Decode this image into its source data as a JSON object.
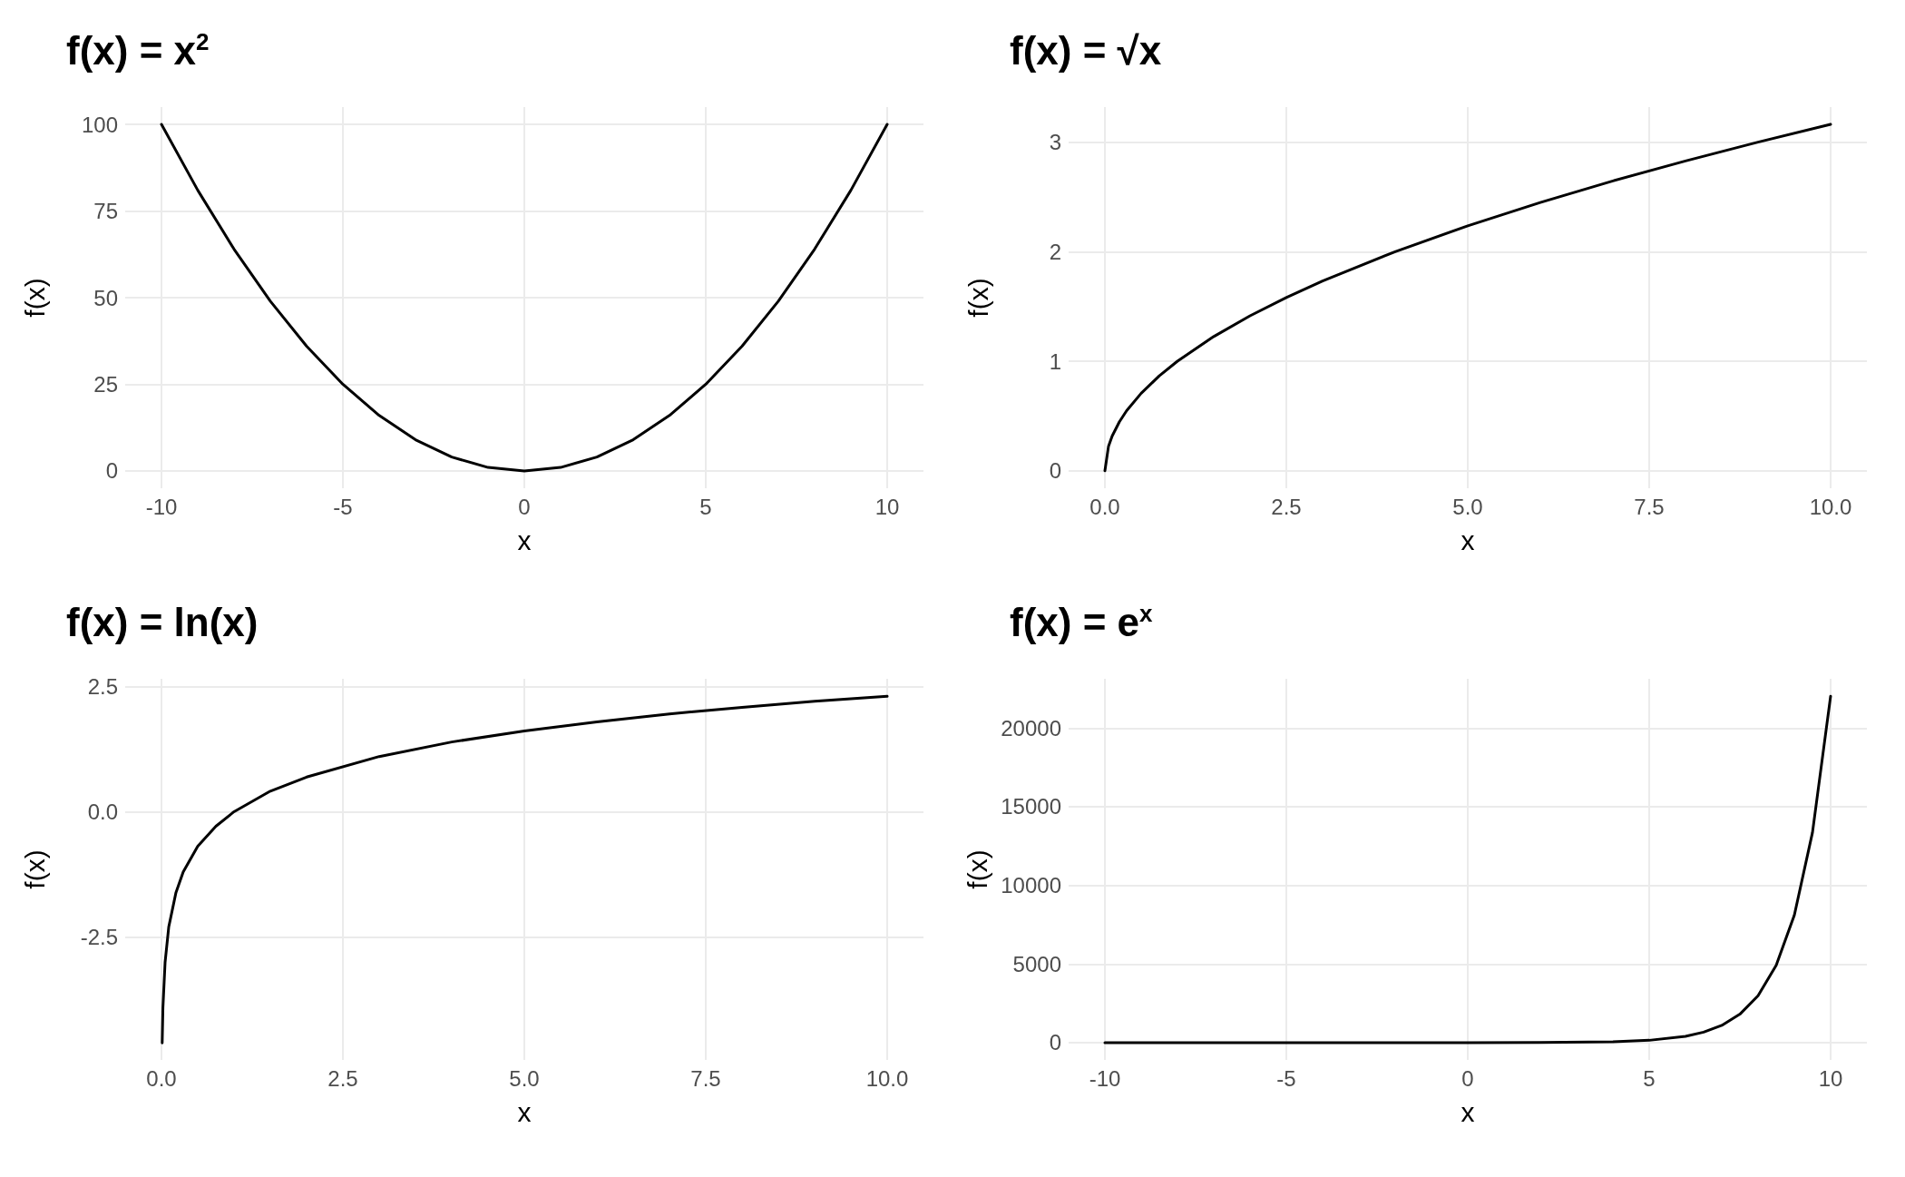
{
  "chart_data": [
    {
      "type": "line",
      "title": "f(x) = x$^{2}$",
      "xlabel": "x",
      "ylabel": "f(x)",
      "grid": true,
      "marker": "none",
      "line_style": "solid",
      "xlim": [
        -11,
        11
      ],
      "xticks": [
        -10,
        -5,
        0,
        5,
        10
      ],
      "ylim": [
        -5,
        105
      ],
      "yticks": [
        0,
        25,
        50,
        75,
        100
      ],
      "series": [
        {
          "color": "#000000",
          "x": [
            -10,
            -9,
            -8,
            -7,
            -6,
            -5,
            -4,
            -3,
            -2,
            -1,
            0,
            1,
            2,
            3,
            4,
            5,
            6,
            7,
            8,
            9,
            10
          ],
          "values": [
            100,
            81,
            64,
            49,
            36,
            25,
            16,
            9,
            4,
            1,
            0,
            1,
            4,
            9,
            16,
            25,
            36,
            49,
            64,
            81,
            100
          ]
        }
      ]
    },
    {
      "type": "line",
      "title": "f(x) = √x",
      "xlabel": "x",
      "ylabel": "f(x)",
      "grid": true,
      "marker": "none",
      "line_style": "solid",
      "xlim": [
        -0.5,
        10.5
      ],
      "xticks": [
        {
          "value": 0,
          "label": "0.0"
        },
        2.5,
        {
          "value": 5,
          "label": "5.0"
        },
        7.5,
        {
          "value": 10,
          "label": "10.0"
        }
      ],
      "ylim": [
        -0.16,
        3.32
      ],
      "yticks": [
        0,
        1,
        2,
        3
      ],
      "series": [
        {
          "color": "#000000",
          "x": [
            0,
            0.05,
            0.1,
            0.2,
            0.3,
            0.5,
            0.75,
            1,
            1.5,
            2,
            2.5,
            3,
            4,
            5,
            6,
            7,
            8,
            9,
            10
          ],
          "values": [
            0,
            0.224,
            0.316,
            0.447,
            0.548,
            0.707,
            0.866,
            1,
            1.225,
            1.414,
            1.581,
            1.732,
            2,
            2.236,
            2.449,
            2.646,
            2.828,
            3,
            3.162
          ]
        }
      ]
    },
    {
      "type": "line",
      "title": "f(x) = ln(x)",
      "xlabel": "x",
      "ylabel": "f(x)",
      "grid": true,
      "marker": "none",
      "line_style": "solid",
      "xlim": [
        -0.5,
        10.5
      ],
      "xticks": [
        {
          "value": 0,
          "label": "0.0"
        },
        2.5,
        {
          "value": 5,
          "label": "5.0"
        },
        7.5,
        {
          "value": 10,
          "label": "10.0"
        }
      ],
      "ylim": [
        -4.95,
        2.65
      ],
      "yticks": [
        {
          "value": -2.5,
          "label": "-2.5"
        },
        {
          "value": 0,
          "label": "0.0"
        },
        2.5
      ],
      "series": [
        {
          "color": "#000000",
          "x": [
            0.01,
            0.02,
            0.05,
            0.1,
            0.2,
            0.3,
            0.5,
            0.75,
            1,
            1.5,
            2,
            3,
            4,
            5,
            6,
            7,
            8,
            9,
            10
          ],
          "values": [
            -4.61,
            -3.91,
            -3,
            -2.3,
            -1.61,
            -1.2,
            -0.69,
            -0.29,
            0,
            0.41,
            0.69,
            1.1,
            1.39,
            1.61,
            1.79,
            1.95,
            2.08,
            2.2,
            2.3
          ]
        }
      ]
    },
    {
      "type": "line",
      "title": "f(x) = e$^{x}$",
      "xlabel": "x",
      "ylabel": "f(x)",
      "grid": true,
      "marker": "none",
      "line_style": "solid",
      "xlim": [
        -11,
        11
      ],
      "xticks": [
        -10,
        -5,
        0,
        5,
        10
      ],
      "ylim": [
        -1100,
        23130
      ],
      "yticks": [
        0,
        5000,
        10000,
        15000,
        20000
      ],
      "series": [
        {
          "color": "#000000",
          "x": [
            -10,
            -5,
            0,
            2,
            4,
            5,
            6,
            6.5,
            7,
            7.5,
            8,
            8.5,
            9,
            9.5,
            10
          ],
          "values": [
            0,
            0,
            1,
            7,
            55,
            148,
            403,
            665,
            1097,
            1808,
            2981,
            4915,
            8103,
            13360,
            22026
          ]
        }
      ]
    }
  ]
}
